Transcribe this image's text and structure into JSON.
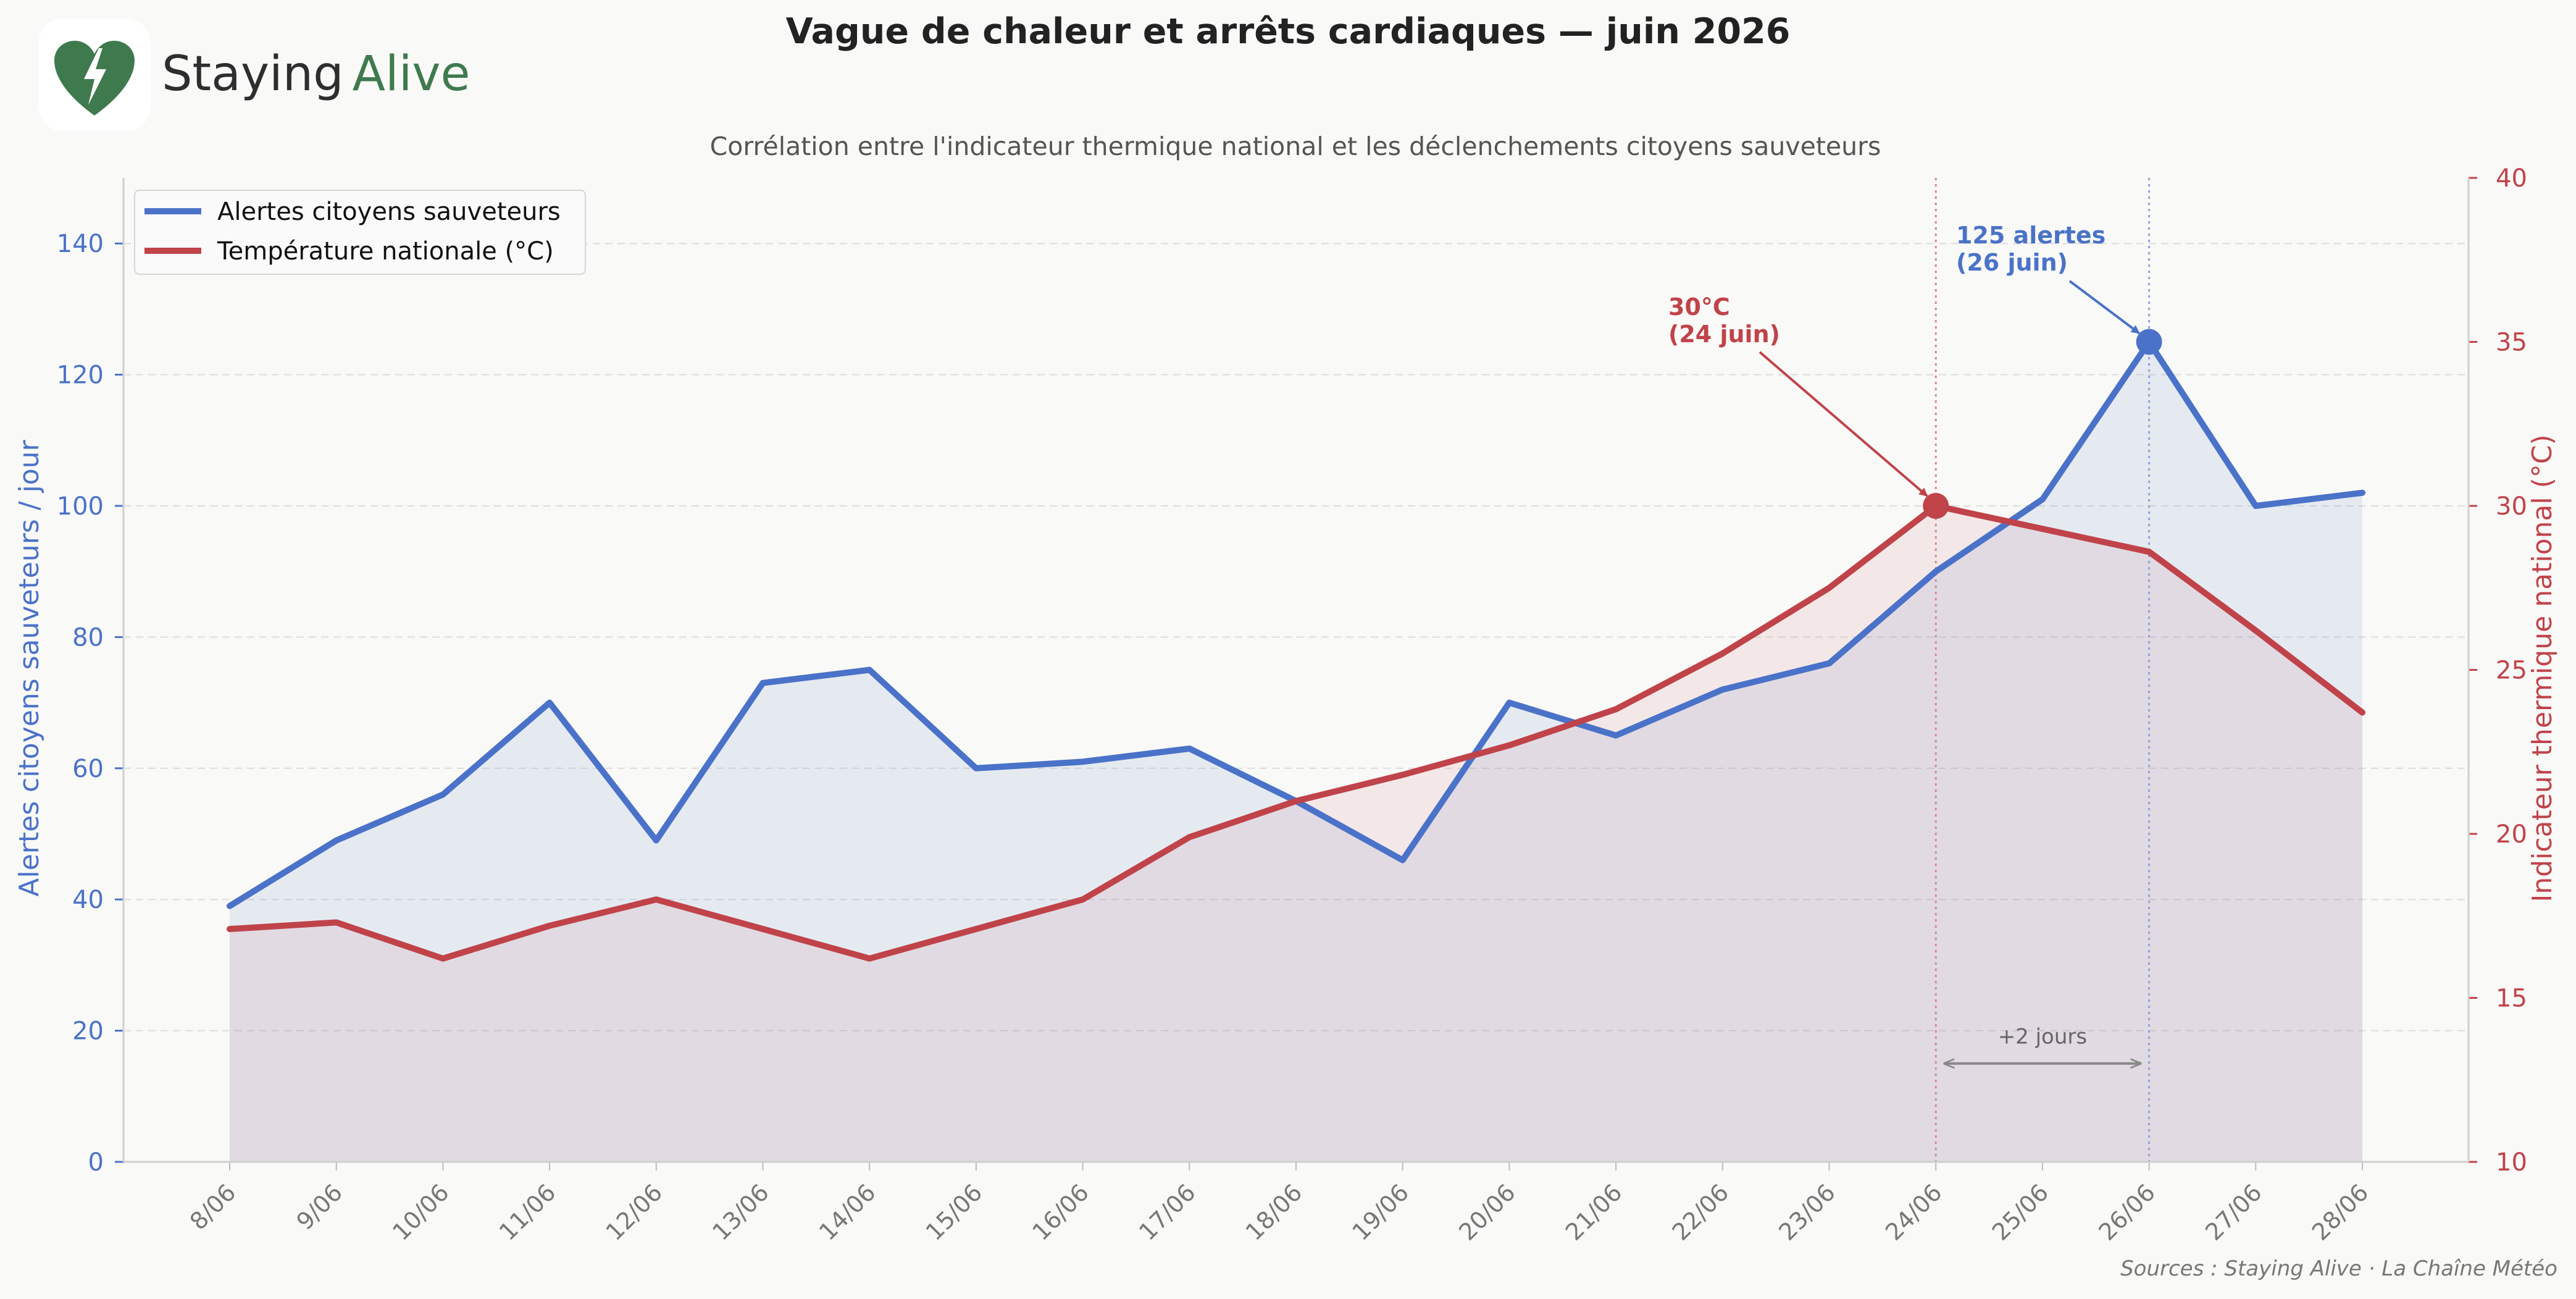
{
  "brand": {
    "name_part1": "Staying",
    "name_part2": "Alive",
    "logo_icon": "heart-lightning-icon",
    "color_dark": "#2e2e2e",
    "color_green": "#3f7a4f"
  },
  "footer": {
    "source": "Sources : Staying Alive · La Chaîne Météo"
  },
  "chart_data": {
    "type": "line",
    "title": "Vague de chaleur et arrêts cardiaques — juin 2026",
    "subtitle": "Corrélation entre l'indicateur thermique national et les déclenchements citoyens sauveteurs",
    "categories": [
      "8/06",
      "9/06",
      "10/06",
      "11/06",
      "12/06",
      "13/06",
      "14/06",
      "15/06",
      "16/06",
      "17/06",
      "18/06",
      "19/06",
      "20/06",
      "21/06",
      "22/06",
      "23/06",
      "24/06",
      "25/06",
      "26/06",
      "27/06",
      "28/06"
    ],
    "ylabel": "Alertes citoyens sauveteurs / jour",
    "ylim": [
      0,
      150
    ],
    "y_ticks": [
      0,
      20,
      40,
      60,
      80,
      100,
      120,
      140
    ],
    "y2label": "Indicateur thermique national (°C)",
    "y2lim": [
      10,
      40
    ],
    "y2_ticks": [
      10,
      15,
      20,
      25,
      30,
      35,
      40
    ],
    "grid": true,
    "legend_position": "top-left",
    "series": [
      {
        "name": "Alertes citoyens sauveteurs",
        "axis": "left",
        "color": "#4a72c8",
        "values": [
          39,
          49,
          56,
          70,
          49,
          73,
          75,
          60,
          61,
          63,
          55,
          46,
          70,
          65,
          72,
          76,
          90,
          101,
          125,
          100,
          102
        ]
      },
      {
        "name": "Température nationale (°C)",
        "axis": "right",
        "color": "#c0434a",
        "values": [
          17.1,
          17.3,
          16.2,
          17.2,
          18.0,
          17.1,
          16.2,
          17.1,
          18.0,
          19.9,
          21.0,
          21.8,
          22.7,
          23.8,
          25.5,
          27.5,
          30.0,
          29.3,
          28.6,
          26.2,
          23.7
        ]
      }
    ],
    "annotations": {
      "temp_peak": {
        "line1": "30°C",
        "line2": "(24 juin)",
        "category": "24/06",
        "value": 30
      },
      "alert_peak": {
        "line1": "125 alertes",
        "line2": "(26 juin)",
        "category": "26/06",
        "value": 125
      },
      "lag": {
        "label": "+2 jours",
        "from": "24/06",
        "to": "26/06"
      }
    }
  }
}
